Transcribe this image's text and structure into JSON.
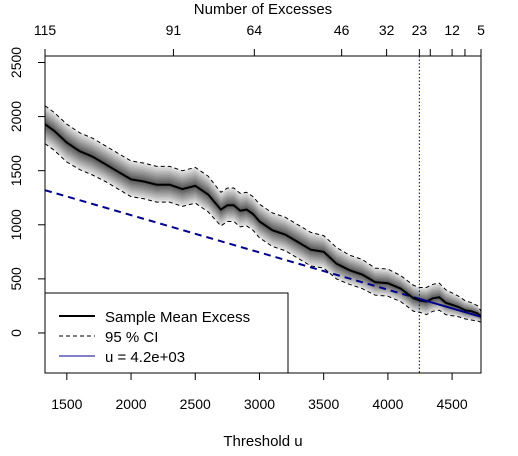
{
  "chart_data": {
    "type": "line",
    "title": "",
    "xlabel": "Threshold u",
    "ylabel": "",
    "top_axis_label": "Number of Excesses",
    "xlim": [
      1330,
      4725
    ],
    "ylim": [
      -370,
      2560
    ],
    "x_ticks": [
      "1500",
      "2000",
      "2500",
      "3000",
      "3500",
      "4000",
      "4500"
    ],
    "y_ticks": [
      "0",
      "500",
      "1000",
      "1500",
      "2000",
      "2500"
    ],
    "top_ticks": [
      {
        "label": "115",
        "u": 1330
      },
      {
        "label": "91",
        "u": 2330
      },
      {
        "label": "64",
        "u": 2960
      },
      {
        "label": "46",
        "u": 3640
      },
      {
        "label": "32",
        "u": 3990
      },
      {
        "label": "23",
        "u": 4245
      },
      {
        "label": "",
        "u": 4330
      },
      {
        "label": "12",
        "u": 4500
      },
      {
        "label": "",
        "u": 4600
      },
      {
        "label": "5",
        "u": 4725
      }
    ],
    "threshold_line_x": 4245,
    "legend": {
      "position": "bottom-left",
      "entries": [
        {
          "label": "Sample Mean Excess",
          "style": "solid",
          "color": "#000000"
        },
        {
          "label": "95 % CI",
          "style": "dashed",
          "color": "#000000"
        },
        {
          "label": "u = 4.2e+03",
          "style": "solid",
          "color": "#00008b"
        }
      ]
    },
    "series": [
      {
        "name": "Sample Mean Excess",
        "x": [
          1330,
          1400,
          1500,
          1600,
          1700,
          1800,
          1900,
          2000,
          2100,
          2200,
          2300,
          2400,
          2500,
          2600,
          2700,
          2750,
          2800,
          2850,
          2900,
          2950,
          3000,
          3100,
          3200,
          3300,
          3400,
          3500,
          3600,
          3700,
          3800,
          3900,
          4000,
          4100,
          4200,
          4250,
          4300,
          4350,
          4400,
          4450,
          4500,
          4550,
          4600,
          4650,
          4700,
          4725
        ],
        "y": [
          1930,
          1870,
          1760,
          1680,
          1630,
          1560,
          1490,
          1420,
          1400,
          1370,
          1370,
          1330,
          1360,
          1280,
          1140,
          1180,
          1180,
          1130,
          1140,
          1100,
          1030,
          950,
          910,
          840,
          770,
          750,
          640,
          580,
          540,
          470,
          460,
          410,
          320,
          300,
          290,
          320,
          330,
          280,
          260,
          240,
          210,
          200,
          180,
          150
        ]
      },
      {
        "name": "95 % CI",
        "x": [
          1330,
          1400,
          1500,
          1600,
          1700,
          1800,
          1900,
          2000,
          2100,
          2200,
          2300,
          2400,
          2500,
          2600,
          2700,
          2750,
          2800,
          2850,
          2900,
          2950,
          3000,
          3100,
          3200,
          3300,
          3400,
          3500,
          3600,
          3700,
          3800,
          3900,
          4000,
          4100,
          4200,
          4250,
          4300,
          4350,
          4400,
          4450,
          4500,
          4550,
          4600,
          4650,
          4700,
          4725
        ],
        "upper": [
          2100,
          2040,
          1930,
          1850,
          1800,
          1730,
          1660,
          1590,
          1570,
          1540,
          1540,
          1500,
          1530,
          1450,
          1300,
          1340,
          1340,
          1290,
          1300,
          1260,
          1190,
          1110,
          1070,
          1000,
          930,
          900,
          790,
          720,
          680,
          600,
          590,
          530,
          440,
          420,
          420,
          450,
          460,
          400,
          370,
          340,
          300,
          280,
          250,
          200
        ],
        "lower": [
          1750,
          1690,
          1580,
          1510,
          1460,
          1400,
          1330,
          1260,
          1240,
          1210,
          1210,
          1170,
          1200,
          1120,
          990,
          1030,
          1030,
          980,
          990,
          950,
          880,
          800,
          760,
          690,
          620,
          600,
          500,
          450,
          410,
          350,
          340,
          290,
          200,
          190,
          170,
          200,
          210,
          170,
          160,
          150,
          130,
          120,
          110,
          100
        ]
      },
      {
        "name": "u = 4.2e+03",
        "x": [
          1330,
          4725
        ],
        "y": [
          1320,
          150
        ],
        "fit_line_start": 4245
      }
    ]
  }
}
